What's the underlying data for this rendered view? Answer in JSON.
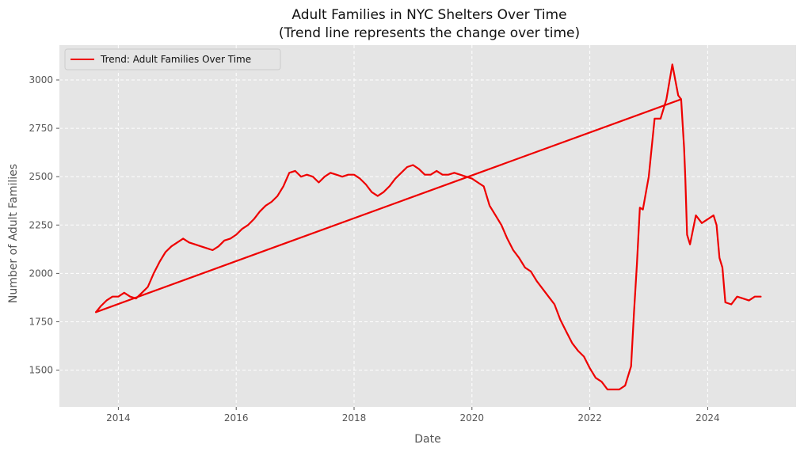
{
  "chart_data": {
    "type": "line",
    "title": "Adult Families in NYC Shelters Over Time",
    "subtitle": "(Trend line represents the change over time)",
    "xlabel": "Date",
    "ylabel": "Number of Adult Families",
    "xlim": [
      2013.0,
      2025.5
    ],
    "ylim": [
      1310,
      3180
    ],
    "x_ticks": [
      2014,
      2016,
      2018,
      2020,
      2022,
      2024
    ],
    "y_ticks": [
      1500,
      1750,
      2000,
      2250,
      2500,
      2750,
      3000
    ],
    "grid": true,
    "legend_position": "top-left",
    "colors": {
      "series": "#ee0000",
      "plot_bg": "#e5e5e5",
      "grid": "#ffffff"
    },
    "series": [
      {
        "name": "",
        "role": "data",
        "x": [
          2013.62,
          2013.7,
          2013.8,
          2013.9,
          2014.0,
          2014.1,
          2014.2,
          2014.3,
          2014.4,
          2014.5,
          2014.6,
          2014.7,
          2014.8,
          2014.9,
          2015.0,
          2015.1,
          2015.2,
          2015.3,
          2015.4,
          2015.5,
          2015.6,
          2015.7,
          2015.8,
          2015.9,
          2016.0,
          2016.1,
          2016.2,
          2016.3,
          2016.4,
          2016.5,
          2016.6,
          2016.7,
          2016.8,
          2016.9,
          2017.0,
          2017.1,
          2017.2,
          2017.3,
          2017.4,
          2017.5,
          2017.6,
          2017.7,
          2017.8,
          2017.9,
          2018.0,
          2018.1,
          2018.2,
          2018.3,
          2018.4,
          2018.5,
          2018.6,
          2018.7,
          2018.8,
          2018.9,
          2019.0,
          2019.1,
          2019.2,
          2019.3,
          2019.4,
          2019.5,
          2019.6,
          2019.7,
          2019.8,
          2019.9,
          2020.0,
          2020.1,
          2020.2,
          2020.3,
          2020.4,
          2020.5,
          2020.6,
          2020.7,
          2020.8,
          2020.9,
          2021.0,
          2021.1,
          2021.2,
          2021.3,
          2021.4,
          2021.5,
          2021.6,
          2021.7,
          2021.8,
          2021.9,
          2022.0,
          2022.1,
          2022.2,
          2022.3,
          2022.4,
          2022.5,
          2022.6,
          2022.7,
          2022.75,
          2022.8,
          2022.85,
          2022.9,
          2023.0,
          2023.1,
          2023.2,
          2023.3,
          2023.4,
          2023.45,
          2023.5,
          2023.55,
          2023.6,
          2023.62,
          2023.65,
          2023.7,
          2023.8,
          2023.9,
          2024.0,
          2024.1,
          2024.15,
          2024.2,
          2024.25,
          2024.3,
          2024.4,
          2024.5,
          2024.6,
          2024.7,
          2024.8,
          2024.9
        ],
        "y": [
          1800,
          1830,
          1860,
          1880,
          1880,
          1900,
          1880,
          1870,
          1900,
          1930,
          2000,
          2060,
          2110,
          2140,
          2160,
          2180,
          2160,
          2150,
          2140,
          2130,
          2120,
          2140,
          2170,
          2180,
          2200,
          2230,
          2250,
          2280,
          2320,
          2350,
          2370,
          2400,
          2450,
          2520,
          2530,
          2500,
          2510,
          2500,
          2470,
          2500,
          2520,
          2510,
          2500,
          2510,
          2510,
          2490,
          2460,
          2420,
          2400,
          2420,
          2450,
          2490,
          2520,
          2550,
          2560,
          2540,
          2510,
          2510,
          2530,
          2510,
          2510,
          2520,
          2510,
          2500,
          2490,
          2470,
          2450,
          2350,
          2300,
          2250,
          2180,
          2120,
          2080,
          2030,
          2010,
          1960,
          1920,
          1880,
          1840,
          1760,
          1700,
          1640,
          1600,
          1570,
          1510,
          1460,
          1440,
          1400,
          1400,
          1400,
          1420,
          1520,
          1800,
          2050,
          2340,
          2330,
          2500,
          2800,
          2800,
          2900,
          3080,
          3000,
          2920,
          2900,
          2650,
          2500,
          2200,
          2150,
          2300,
          2260,
          2280,
          2300,
          2250,
          2080,
          2030,
          1850,
          1840,
          1880,
          1870,
          1860,
          1880,
          1880
        ]
      },
      {
        "name": "Trend: Adult Families Over Time",
        "role": "trend",
        "x": [
          2013.62,
          2023.55
        ],
        "y": [
          1800,
          2900
        ]
      }
    ]
  }
}
